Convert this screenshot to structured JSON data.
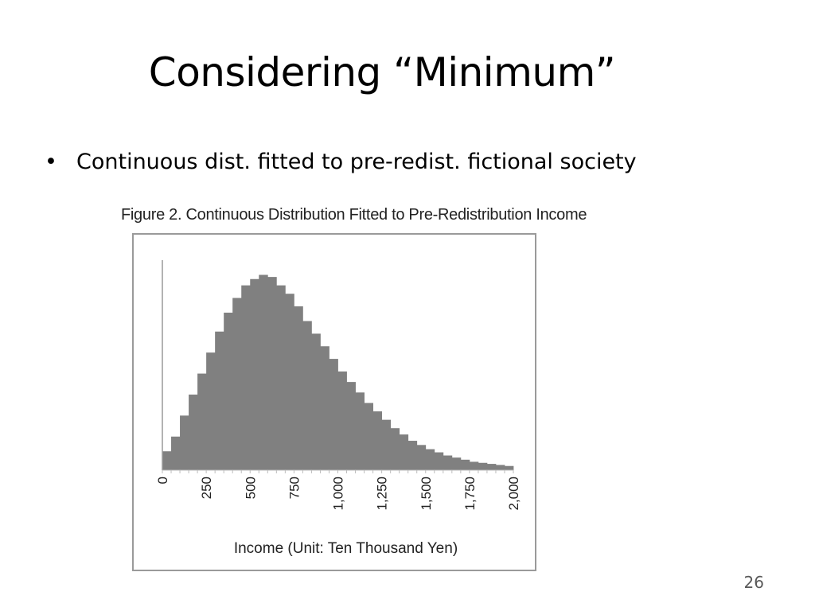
{
  "slide": {
    "title": "Considering “Minimum”",
    "bullets": [
      "Continuous dist. fitted to pre-redist. fictional society"
    ],
    "page_number": "26"
  },
  "colors": {
    "bar_fill": "#808080",
    "axis": "#999999"
  },
  "chart_data": {
    "type": "bar",
    "title": "Figure 2. Continuous Distribution Fitted to Pre-Redistribution Income",
    "xlabel": "Income (Unit: Ten Thousand Yen)",
    "ylabel": "",
    "grid": false,
    "legend": "none",
    "bin_width": 50,
    "xlim": [
      0,
      2000
    ],
    "ylim": [
      0,
      1
    ],
    "y_axis_labels_shown": false,
    "x_ticks": [
      0,
      250,
      500,
      750,
      1000,
      1250,
      1500,
      1750,
      2000
    ],
    "x_tick_labels": [
      "0",
      "250",
      "500",
      "750",
      "1,000",
      "1,250",
      "1,500",
      "1,750",
      "2,000"
    ],
    "bin_starts": [
      0,
      50,
      100,
      150,
      200,
      250,
      300,
      350,
      400,
      450,
      500,
      550,
      600,
      650,
      700,
      750,
      800,
      850,
      900,
      950,
      1000,
      1050,
      1100,
      1150,
      1200,
      1250,
      1300,
      1350,
      1400,
      1450,
      1500,
      1550,
      1600,
      1650,
      1700,
      1750,
      1800,
      1850,
      1900,
      1950
    ],
    "values": [
      0.09,
      0.16,
      0.26,
      0.36,
      0.46,
      0.56,
      0.66,
      0.75,
      0.82,
      0.88,
      0.91,
      0.93,
      0.92,
      0.88,
      0.84,
      0.78,
      0.71,
      0.65,
      0.59,
      0.53,
      0.47,
      0.42,
      0.37,
      0.32,
      0.28,
      0.24,
      0.2,
      0.17,
      0.14,
      0.12,
      0.1,
      0.085,
      0.07,
      0.06,
      0.05,
      0.04,
      0.035,
      0.03,
      0.025,
      0.02
    ]
  }
}
